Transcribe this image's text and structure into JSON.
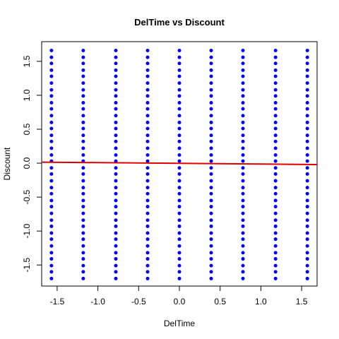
{
  "chart_data": {
    "type": "scatter",
    "title": "DelTime vs Discount",
    "x_label": "DelTime",
    "y_label": "Discount",
    "color": "#0000ff",
    "x": [
      -1.57,
      -1.57,
      -1.57,
      -1.57,
      -1.57,
      -1.57,
      -1.57,
      -1.57,
      -1.57,
      -1.57,
      -1.57,
      -1.57,
      -1.57,
      -1.57,
      -1.57,
      -1.57,
      -1.57,
      -1.57,
      -1.57,
      -1.57,
      -1.57,
      -1.57,
      -1.57,
      -1.57,
      -1.57,
      -1.57,
      -1.57,
      -1.57,
      -1.57,
      -1.57,
      -1.57,
      -1.57,
      -1.57,
      -1.57,
      -1.57,
      -1.57,
      -1.18,
      -1.18,
      -1.18,
      -1.18,
      -1.18,
      -1.18,
      -1.18,
      -1.18,
      -1.18,
      -1.18,
      -1.18,
      -1.18,
      -1.18,
      -1.18,
      -1.18,
      -1.18,
      -1.18,
      -1.18,
      -1.18,
      -1.18,
      -1.18,
      -1.18,
      -1.18,
      -1.18,
      -1.18,
      -1.18,
      -1.18,
      -1.18,
      -1.18,
      -1.18,
      -1.18,
      -1.18,
      -1.18,
      -1.18,
      -1.18,
      -1.18,
      -0.78,
      -0.78,
      -0.78,
      -0.78,
      -0.78,
      -0.78,
      -0.78,
      -0.78,
      -0.78,
      -0.78,
      -0.78,
      -0.78,
      -0.78,
      -0.78,
      -0.78,
      -0.78,
      -0.78,
      -0.78,
      -0.78,
      -0.78,
      -0.78,
      -0.78,
      -0.78,
      -0.78,
      -0.78,
      -0.78,
      -0.78,
      -0.78,
      -0.78,
      -0.78,
      -0.78,
      -0.78,
      -0.78,
      -0.78,
      -0.78,
      -0.78,
      -0.39,
      -0.39,
      -0.39,
      -0.39,
      -0.39,
      -0.39,
      -0.39,
      -0.39,
      -0.39,
      -0.39,
      -0.39,
      -0.39,
      -0.39,
      -0.39,
      -0.39,
      -0.39,
      -0.39,
      -0.39,
      -0.39,
      -0.39,
      -0.39,
      -0.39,
      -0.39,
      -0.39,
      -0.39,
      -0.39,
      -0.39,
      -0.39,
      -0.39,
      -0.39,
      -0.39,
      -0.39,
      -0.39,
      -0.39,
      -0.39,
      -0.39,
      0,
      0,
      0,
      0,
      0,
      0,
      0,
      0,
      0,
      0,
      0,
      0,
      0,
      0,
      0,
      0,
      0,
      0,
      0,
      0,
      0,
      0,
      0,
      0,
      0,
      0,
      0,
      0,
      0,
      0,
      0,
      0,
      0,
      0,
      0,
      0,
      0.39,
      0.39,
      0.39,
      0.39,
      0.39,
      0.39,
      0.39,
      0.39,
      0.39,
      0.39,
      0.39,
      0.39,
      0.39,
      0.39,
      0.39,
      0.39,
      0.39,
      0.39,
      0.39,
      0.39,
      0.39,
      0.39,
      0.39,
      0.39,
      0.39,
      0.39,
      0.39,
      0.39,
      0.39,
      0.39,
      0.39,
      0.39,
      0.39,
      0.39,
      0.39,
      0.39,
      0.78,
      0.78,
      0.78,
      0.78,
      0.78,
      0.78,
      0.78,
      0.78,
      0.78,
      0.78,
      0.78,
      0.78,
      0.78,
      0.78,
      0.78,
      0.78,
      0.78,
      0.78,
      0.78,
      0.78,
      0.78,
      0.78,
      0.78,
      0.78,
      0.78,
      0.78,
      0.78,
      0.78,
      0.78,
      0.78,
      0.78,
      0.78,
      0.78,
      0.78,
      0.78,
      0.78,
      1.18,
      1.18,
      1.18,
      1.18,
      1.18,
      1.18,
      1.18,
      1.18,
      1.18,
      1.18,
      1.18,
      1.18,
      1.18,
      1.18,
      1.18,
      1.18,
      1.18,
      1.18,
      1.18,
      1.18,
      1.18,
      1.18,
      1.18,
      1.18,
      1.18,
      1.18,
      1.18,
      1.18,
      1.18,
      1.18,
      1.18,
      1.18,
      1.18,
      1.18,
      1.18,
      1.18,
      1.57,
      1.57,
      1.57,
      1.57,
      1.57,
      1.57,
      1.57,
      1.57,
      1.57,
      1.57,
      1.57,
      1.57,
      1.57,
      1.57,
      1.57,
      1.57,
      1.57,
      1.57,
      1.57,
      1.57,
      1.57,
      1.57,
      1.57,
      1.57,
      1.57,
      1.57,
      1.57,
      1.57,
      1.57,
      1.57,
      1.57,
      1.57,
      1.57,
      1.57,
      1.57,
      1.57
    ],
    "y": [
      1.66,
      1.56,
      1.47,
      1.37,
      1.28,
      1.18,
      1.08,
      0.99,
      0.89,
      0.8,
      0.7,
      0.6,
      0.51,
      0.41,
      0.32,
      0.22,
      0.12,
      0.03,
      -0.07,
      -0.16,
      -0.26,
      -0.36,
      -0.45,
      -0.55,
      -0.64,
      -0.74,
      -0.84,
      -0.93,
      -1.03,
      -1.12,
      -1.22,
      -1.32,
      -1.41,
      -1.51,
      -1.6,
      -1.7,
      1.66,
      1.56,
      1.47,
      1.37,
      1.28,
      1.18,
      1.08,
      0.99,
      0.89,
      0.8,
      0.7,
      0.6,
      0.51,
      0.41,
      0.32,
      0.22,
      0.12,
      0.03,
      -0.07,
      -0.16,
      -0.26,
      -0.36,
      -0.45,
      -0.55,
      -0.64,
      -0.74,
      -0.84,
      -0.93,
      -1.03,
      -1.12,
      -1.22,
      -1.32,
      -1.41,
      -1.51,
      -1.6,
      -1.7,
      1.66,
      1.56,
      1.47,
      1.37,
      1.28,
      1.18,
      1.08,
      0.99,
      0.89,
      0.8,
      0.7,
      0.6,
      0.51,
      0.41,
      0.32,
      0.22,
      0.12,
      0.03,
      -0.07,
      -0.16,
      -0.26,
      -0.36,
      -0.45,
      -0.55,
      -0.64,
      -0.74,
      -0.84,
      -0.93,
      -1.03,
      -1.12,
      -1.22,
      -1.32,
      -1.41,
      -1.51,
      -1.6,
      -1.7,
      1.66,
      1.56,
      1.47,
      1.37,
      1.28,
      1.18,
      1.08,
      0.99,
      0.89,
      0.8,
      0.7,
      0.6,
      0.51,
      0.41,
      0.32,
      0.22,
      0.12,
      0.03,
      -0.07,
      -0.16,
      -0.26,
      -0.36,
      -0.45,
      -0.55,
      -0.64,
      -0.74,
      -0.84,
      -0.93,
      -1.03,
      -1.12,
      -1.22,
      -1.32,
      -1.41,
      -1.51,
      -1.6,
      -1.7,
      1.66,
      1.56,
      1.47,
      1.37,
      1.28,
      1.18,
      1.08,
      0.99,
      0.89,
      0.8,
      0.7,
      0.6,
      0.51,
      0.41,
      0.32,
      0.22,
      0.12,
      0.03,
      -0.07,
      -0.16,
      -0.26,
      -0.36,
      -0.45,
      -0.55,
      -0.64,
      -0.74,
      -0.84,
      -0.93,
      -1.03,
      -1.12,
      -1.22,
      -1.32,
      -1.41,
      -1.51,
      -1.6,
      -1.7,
      1.66,
      1.56,
      1.47,
      1.37,
      1.28,
      1.18,
      1.08,
      0.99,
      0.89,
      0.8,
      0.7,
      0.6,
      0.51,
      0.41,
      0.32,
      0.22,
      0.12,
      0.03,
      -0.07,
      -0.16,
      -0.26,
      -0.36,
      -0.45,
      -0.55,
      -0.64,
      -0.74,
      -0.84,
      -0.93,
      -1.03,
      -1.12,
      -1.22,
      -1.32,
      -1.41,
      -1.51,
      -1.6,
      -1.7,
      1.66,
      1.56,
      1.47,
      1.37,
      1.28,
      1.18,
      1.08,
      0.99,
      0.89,
      0.8,
      0.7,
      0.6,
      0.51,
      0.41,
      0.32,
      0.22,
      0.12,
      0.03,
      -0.07,
      -0.16,
      -0.26,
      -0.36,
      -0.45,
      -0.55,
      -0.64,
      -0.74,
      -0.84,
      -0.93,
      -1.03,
      -1.12,
      -1.22,
      -1.32,
      -1.41,
      -1.51,
      -1.6,
      -1.7,
      1.66,
      1.56,
      1.47,
      1.37,
      1.28,
      1.18,
      1.08,
      0.99,
      0.89,
      0.8,
      0.7,
      0.6,
      0.51,
      0.41,
      0.32,
      0.22,
      0.12,
      0.03,
      -0.07,
      -0.16,
      -0.26,
      -0.36,
      -0.45,
      -0.55,
      -0.64,
      -0.74,
      -0.84,
      -0.93,
      -1.03,
      -1.12,
      -1.22,
      -1.32,
      -1.41,
      -1.51,
      -1.6,
      -1.7,
      1.66,
      1.56,
      1.47,
      1.37,
      1.28,
      1.18,
      1.08,
      0.99,
      0.89,
      0.8,
      0.7,
      0.6,
      0.51,
      0.41,
      0.32,
      0.22,
      0.12,
      0.03,
      -0.07,
      -0.16,
      -0.26,
      -0.36,
      -0.45,
      -0.55,
      -0.64,
      -0.74,
      -0.84,
      -0.93,
      -1.03,
      -1.12,
      -1.22,
      -1.32,
      -1.41,
      -1.51,
      -1.6,
      -1.7
    ],
    "line": {
      "x": [
        -1.69,
        1.69
      ],
      "y": [
        0.015,
        -0.02
      ],
      "color": "#dd0000"
    },
    "xlim": [
      -1.69,
      1.69
    ],
    "ylim": [
      -1.81,
      1.79
    ],
    "xticks": [
      -1.5,
      {
        "value": -1,
        "label": "-1.0"
      },
      -0.5,
      {
        "value": 0,
        "label": "0.0"
      },
      0.5,
      {
        "value": 1,
        "label": "1.0"
      },
      1.5
    ],
    "yticks": [
      -1.5,
      {
        "value": -1,
        "label": "-1.0"
      },
      -0.5,
      {
        "value": 0,
        "label": "0.0"
      },
      0.5,
      {
        "value": 1,
        "label": "1.0"
      },
      1.5
    ]
  }
}
